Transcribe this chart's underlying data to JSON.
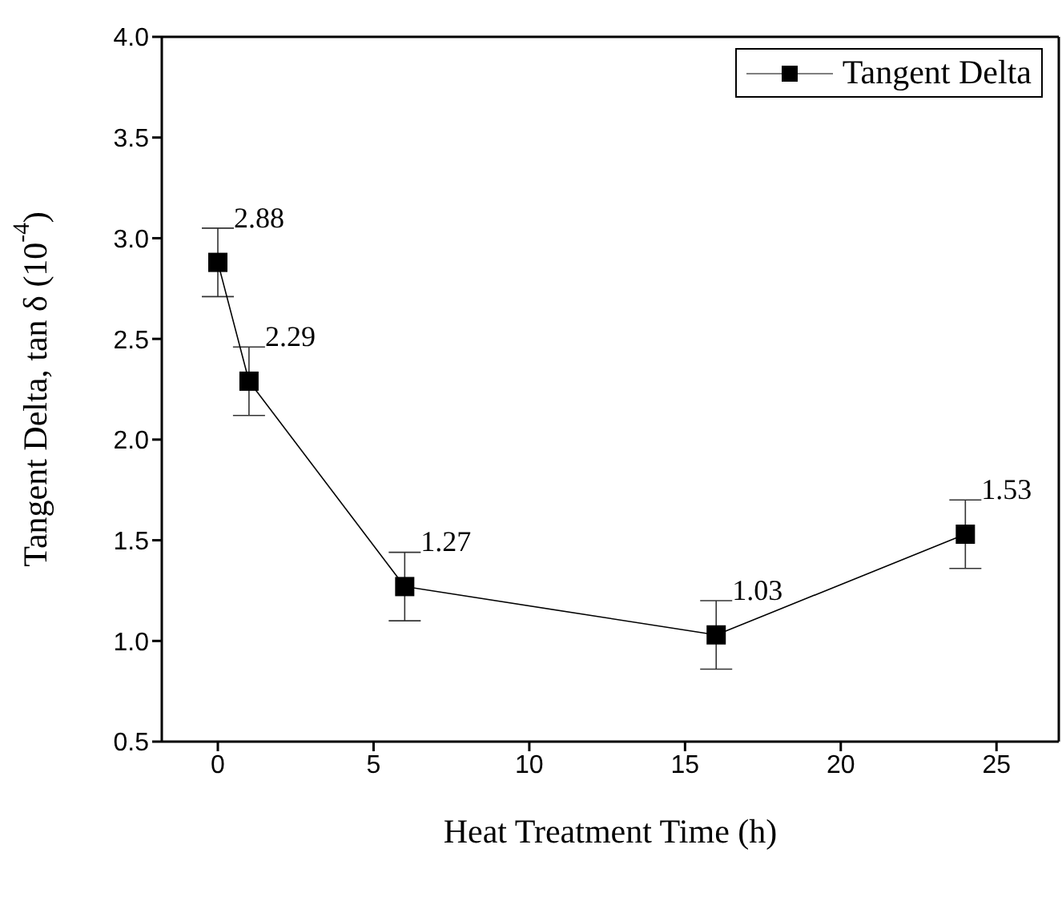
{
  "chart_data": {
    "type": "line",
    "xlabel": "Heat Treatment Time (h)",
    "ylabel": "Tangent Delta, tan δ (10$^{-4}$)",
    "x": [
      0,
      1,
      6,
      16,
      24
    ],
    "series": [
      {
        "name": "Tangent Delta",
        "color": "#000000",
        "values": [
          2.88,
          2.29,
          1.27,
          1.03,
          1.53
        ],
        "errors": [
          0.17,
          0.17,
          0.17,
          0.17,
          0.17
        ]
      }
    ],
    "xlim": [
      -1.8,
      27
    ],
    "xticks": [
      0,
      5,
      10,
      15,
      20,
      25
    ],
    "ylim": [
      0.5,
      4.0
    ],
    "yticks": [
      {
        "value": 0.5,
        "label": "0.5"
      },
      {
        "value": 1,
        "label": "1.0"
      },
      {
        "value": 1.5,
        "label": "1.5"
      },
      {
        "value": 2,
        "label": "2.0"
      },
      {
        "value": 2.5,
        "label": "2.5"
      },
      {
        "value": 3,
        "label": "3.0"
      },
      {
        "value": 3.5,
        "label": "3.5"
      },
      {
        "value": 4,
        "label": "4.0"
      }
    ],
    "data_labels": true,
    "legend": "top right",
    "marker": "square",
    "line_style": "solid",
    "grid": false
  }
}
